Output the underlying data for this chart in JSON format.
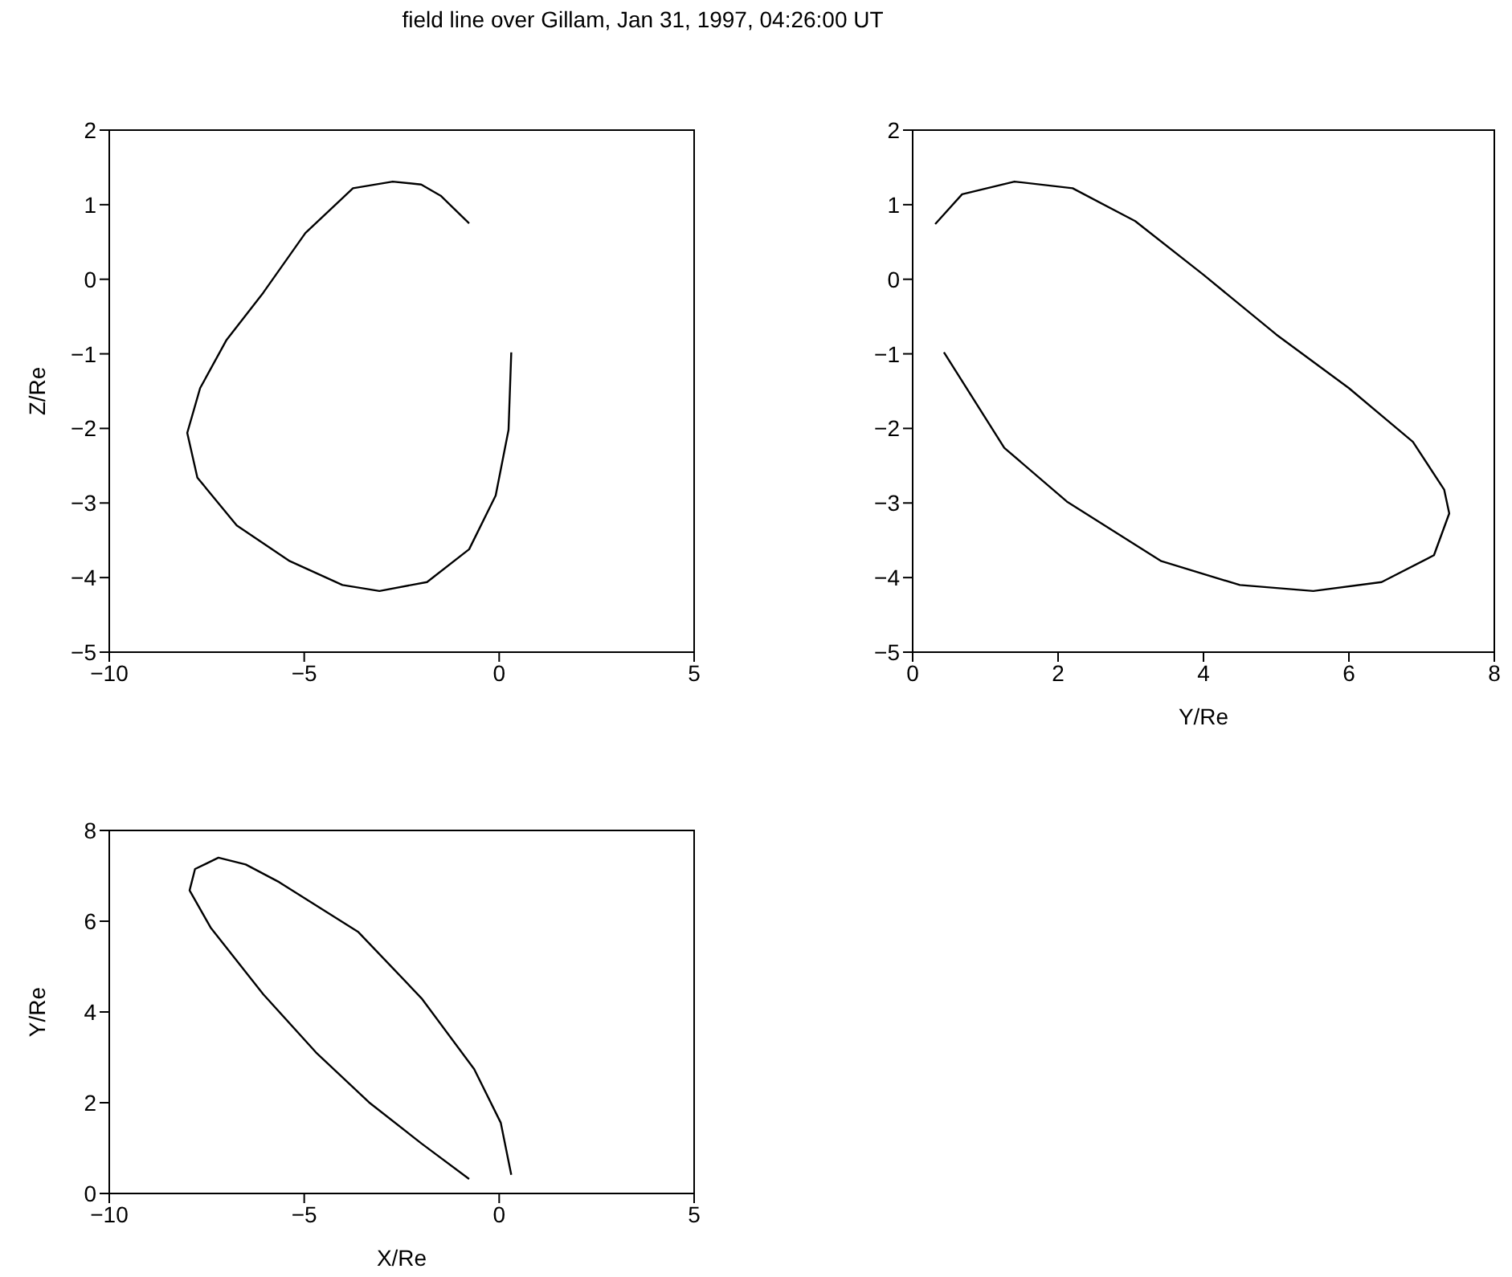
{
  "chart_data": [
    {
      "type": "line",
      "title": "field line over Gillam, Jan 31, 1997, 04:26:00 UT",
      "ylabel": "Z/Re",
      "xlim": [
        -10,
        5
      ],
      "xticks": [
        -10,
        -5,
        0,
        5
      ],
      "ylim": [
        -5,
        2
      ],
      "yticks": [
        -5,
        -4,
        -3,
        -2,
        -1,
        0,
        1,
        2
      ],
      "series": [
        {
          "color": "#000000",
          "x": [
            -0.77,
            -1.5,
            -2.0,
            -2.73,
            -3.75,
            -4.97,
            -6.05,
            -7.0,
            -7.67,
            -8.0,
            -7.74,
            -6.73,
            -5.37,
            -4.02,
            -3.07,
            -1.85,
            -0.77,
            -0.09,
            0.24,
            0.31
          ],
          "values": [
            0.75,
            1.12,
            1.27,
            1.31,
            1.22,
            0.62,
            -0.18,
            -0.82,
            -1.46,
            -2.06,
            -2.66,
            -3.3,
            -3.78,
            -4.1,
            -4.18,
            -4.06,
            -3.62,
            -2.9,
            -2.02,
            -0.98
          ]
        }
      ]
    },
    {
      "type": "line",
      "xlabel": "Y/Re",
      "xlim": [
        0,
        8
      ],
      "xticks": [
        0,
        2,
        4,
        6,
        8
      ],
      "ylim": [
        -5,
        2
      ],
      "yticks": [
        -5,
        -4,
        -3,
        -2,
        -1,
        0,
        1,
        2
      ],
      "series": [
        {
          "color": "#000000",
          "x": [
            0.31,
            0.68,
            1.4,
            2.2,
            3.06,
            4.0,
            5.0,
            6.0,
            6.88,
            7.31,
            7.38,
            7.17,
            6.45,
            5.51,
            4.5,
            3.42,
            2.12,
            1.26,
            0.43
          ],
          "values": [
            0.74,
            1.14,
            1.31,
            1.22,
            0.78,
            0.06,
            -0.74,
            -1.46,
            -2.18,
            -2.82,
            -3.14,
            -3.7,
            -4.06,
            -4.18,
            -4.1,
            -3.78,
            -2.98,
            -2.26,
            -0.98
          ]
        }
      ]
    },
    {
      "type": "line",
      "xlabel": "X/Re",
      "ylabel": "Y/Re",
      "xlim": [
        -10,
        5
      ],
      "xticks": [
        -10,
        -5,
        0,
        5
      ],
      "ylim": [
        0,
        8
      ],
      "yticks": [
        0,
        2,
        4,
        6,
        8
      ],
      "series": [
        {
          "color": "#000000",
          "x": [
            -0.77,
            -1.99,
            -3.34,
            -4.7,
            -6.05,
            -7.4,
            -7.94,
            -7.8,
            -7.2,
            -6.5,
            -5.64,
            -3.61,
            -1.99,
            -0.64,
            0.04,
            0.31
          ],
          "values": [
            0.32,
            1.1,
            2.01,
            3.11,
            4.39,
            5.86,
            6.68,
            7.15,
            7.4,
            7.25,
            6.86,
            5.76,
            4.3,
            2.74,
            1.56,
            0.41
          ]
        }
      ]
    }
  ]
}
